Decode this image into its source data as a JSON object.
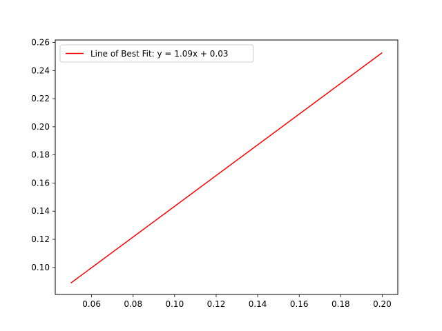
{
  "chart_data": {
    "type": "line",
    "title": "",
    "xlabel": "",
    "ylabel": "",
    "xlim": [
      0.0425,
      0.2075
    ],
    "ylim": [
      0.0808,
      0.2617
    ],
    "grid": false,
    "legend_position": "top-left",
    "x_ticks": [
      "0.06",
      "0.08",
      "0.10",
      "0.12",
      "0.14",
      "0.16",
      "0.18",
      "0.20"
    ],
    "x_tick_values": [
      0.06,
      0.08,
      0.1,
      0.12,
      0.14,
      0.16,
      0.18,
      0.2
    ],
    "y_ticks": [
      "0.10",
      "0.12",
      "0.14",
      "0.16",
      "0.18",
      "0.20",
      "0.22",
      "0.24",
      "0.26"
    ],
    "y_tick_values": [
      0.1,
      0.12,
      0.14,
      0.16,
      0.18,
      0.2,
      0.22,
      0.24,
      0.26
    ],
    "series": [
      {
        "name": "Line of Best Fit: y = 1.09x + 0.03",
        "color": "#ff0000",
        "x": [
          0.05,
          0.2
        ],
        "y": [
          0.0889,
          0.2527
        ]
      }
    ]
  }
}
